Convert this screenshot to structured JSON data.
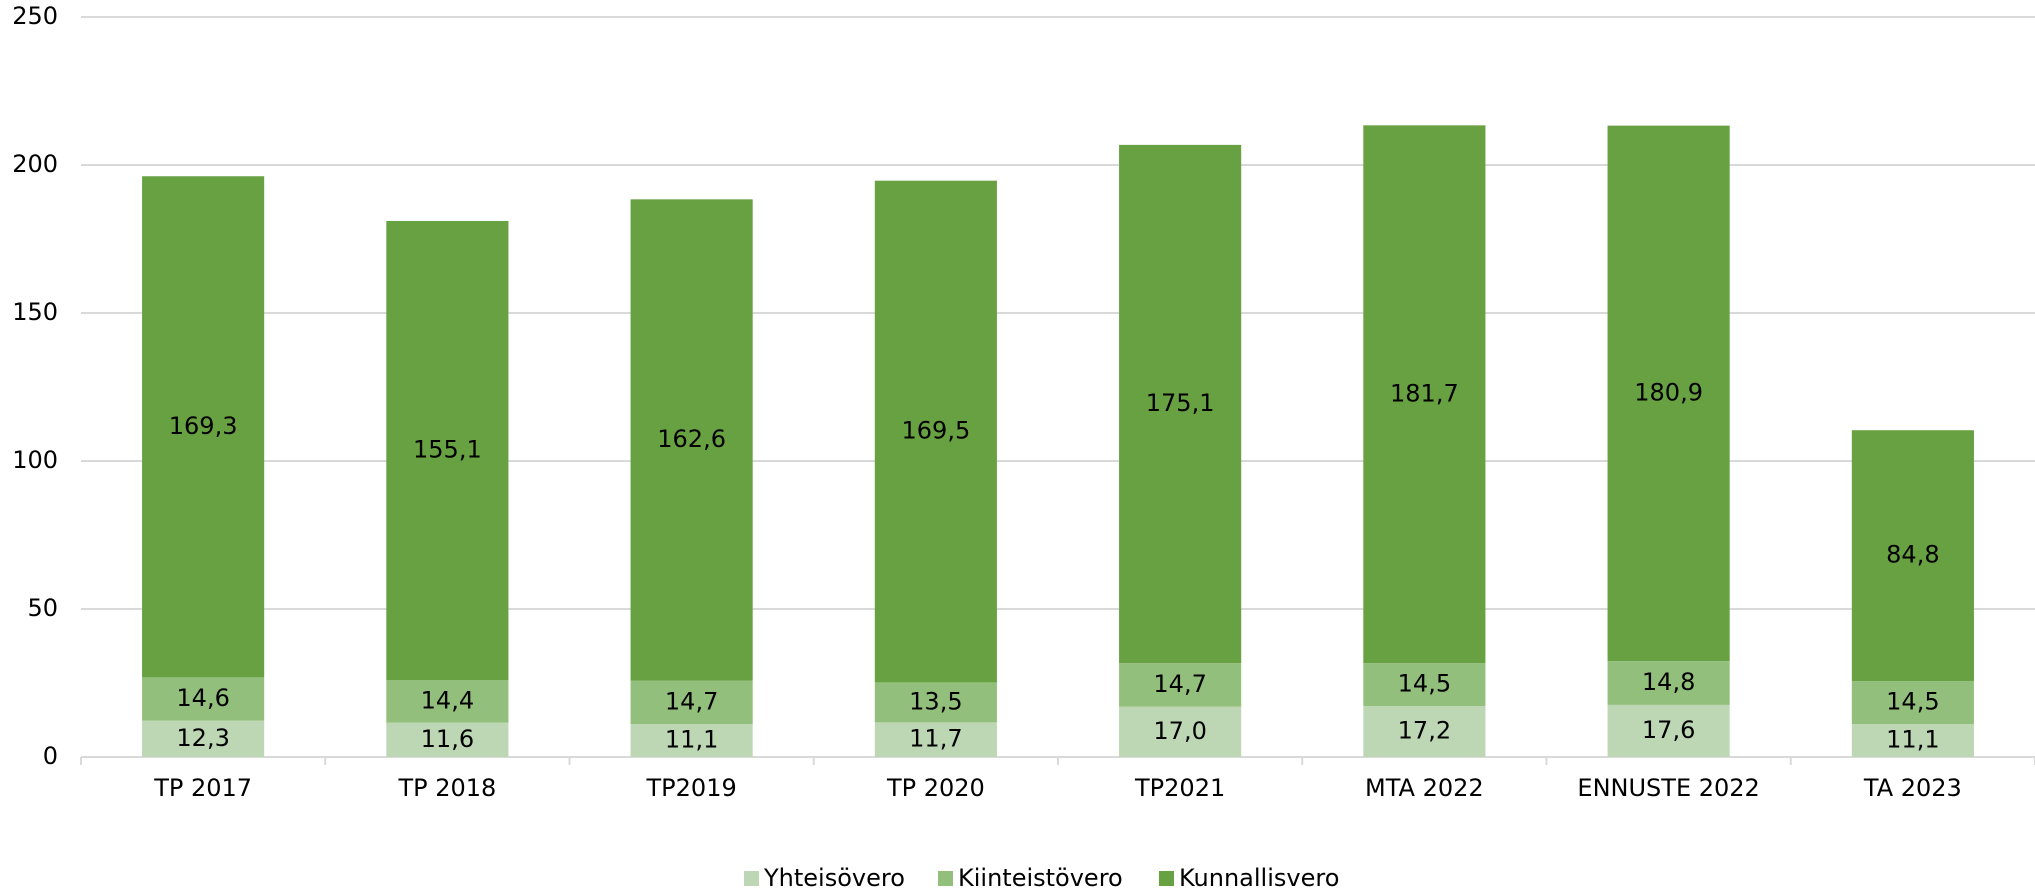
{
  "chart_data": {
    "type": "stacked_bar",
    "categories": [
      "TP 2017",
      "TP 2018",
      "TP2019",
      "TP 2020",
      "TP2021",
      "MTA 2022",
      "ENNUSTE 2022",
      "TA 2023"
    ],
    "series": [
      {
        "name": "Yhteisövero",
        "color": "#bdd7b4",
        "values": [
          12.3,
          11.6,
          11.1,
          11.7,
          17.0,
          17.2,
          17.6,
          11.1
        ],
        "value_labels": [
          "12,3",
          "11,6",
          "11,1",
          "11,7",
          "17,0",
          "17,2",
          "17,6",
          "11,1"
        ]
      },
      {
        "name": "Kiinteistövero",
        "color": "#93bf7c",
        "values": [
          14.6,
          14.4,
          14.7,
          13.5,
          14.7,
          14.5,
          14.8,
          14.5
        ],
        "value_labels": [
          "14,6",
          "14,4",
          "14,7",
          "13,5",
          "14,7",
          "14,5",
          "14,8",
          "14,5"
        ]
      },
      {
        "name": "Kunnallisvero",
        "color": "#67a142",
        "values": [
          169.3,
          155.1,
          162.6,
          169.5,
          175.1,
          181.7,
          180.9,
          84.8
        ],
        "value_labels": [
          "169,3",
          "155,1",
          "162,6",
          "169,5",
          "175,1",
          "181,7",
          "180,9",
          "84,8"
        ]
      }
    ],
    "ylim": [
      0,
      250
    ],
    "yticks": [
      0,
      50,
      100,
      150,
      200,
      250
    ],
    "grid": true,
    "legend": "bottom"
  }
}
